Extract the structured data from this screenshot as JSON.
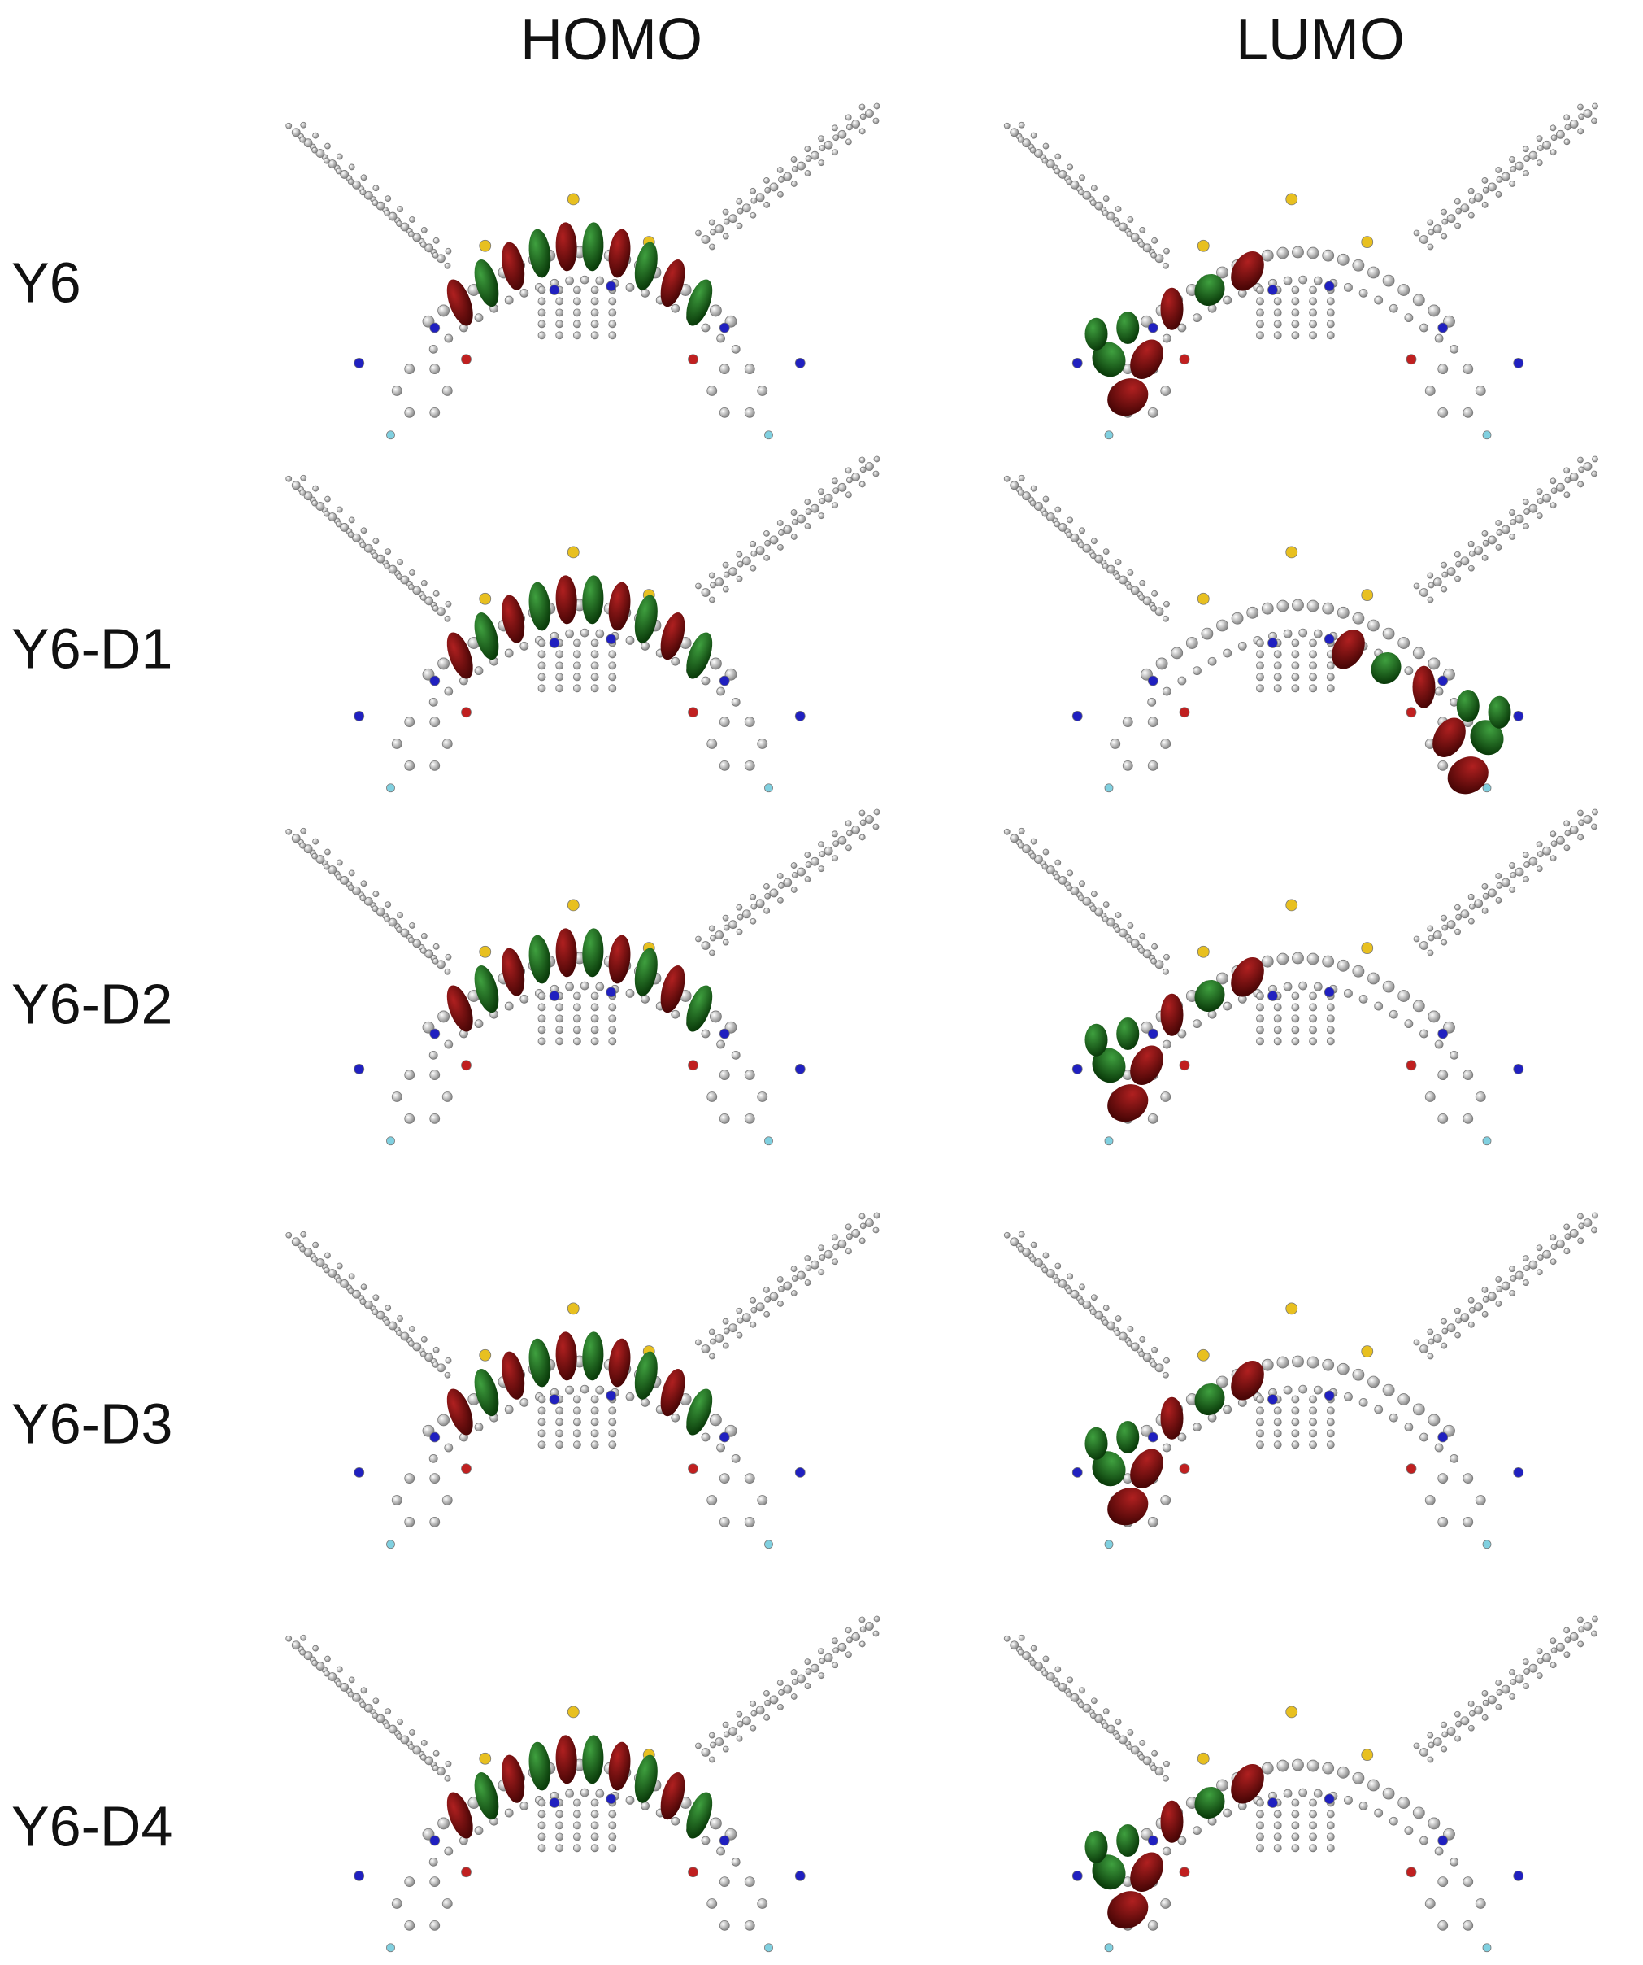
{
  "headers": [
    "HOMO",
    "LUMO"
  ],
  "rows": [
    "Y6",
    "Y6-D1",
    "Y6-D2",
    "Y6-D3",
    "Y6-D4"
  ]
}
